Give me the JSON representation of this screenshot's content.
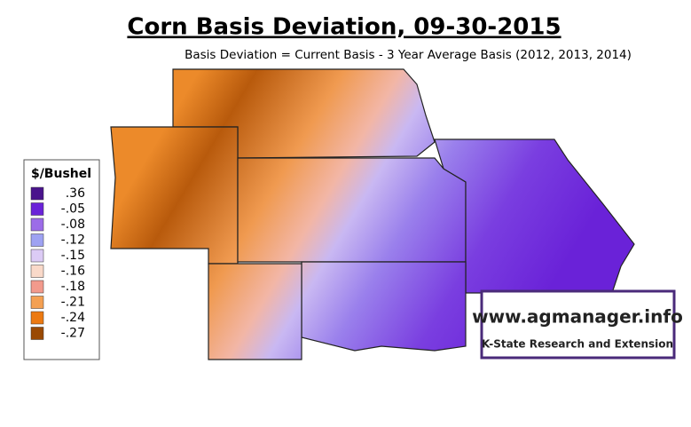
{
  "title": "Corn Basis Deviation, 09-30-2015",
  "subtitle": "Basis Deviation = Current Basis - 3 Year Average Basis (2012, 2013, 2014)",
  "legend": {
    "title": "$/Bushel",
    "items": [
      {
        "label": ".36",
        "color": "#4a148c"
      },
      {
        "label": "-.05",
        "color": "#6a22d8"
      },
      {
        "label": "-.08",
        "color": "#9c6ce8"
      },
      {
        "label": "-.12",
        "color": "#9ea2f2"
      },
      {
        "label": "-.15",
        "color": "#dccbf5"
      },
      {
        "label": "-.16",
        "color": "#f9d9c9"
      },
      {
        "label": "-.18",
        "color": "#f29a8c"
      },
      {
        "label": "-.21",
        "color": "#f4a052"
      },
      {
        "label": "-.24",
        "color": "#ec7a12"
      },
      {
        "label": "-.27",
        "color": "#9a4a04"
      }
    ]
  },
  "logo": {
    "url": "www.agmanager.info",
    "org": "K-State Research and Extension"
  }
}
